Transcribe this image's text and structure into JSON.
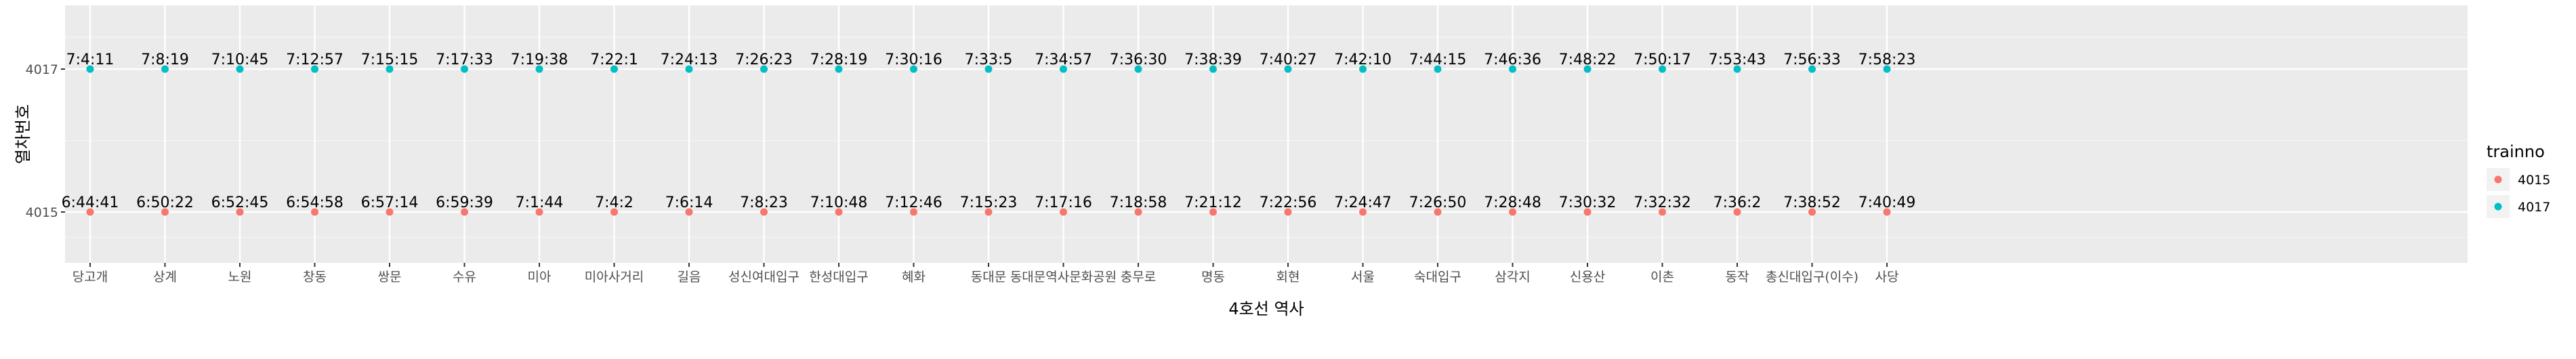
{
  "chart_data": {
    "type": "scatter",
    "title": "",
    "xlabel": "4호선 역사",
    "ylabel": "열차번호",
    "categories": [
      "당고개",
      "상계",
      "노원",
      "창동",
      "쌍문",
      "수유",
      "미아",
      "미아사거리",
      "길음",
      "성신여대입구",
      "한성대입구",
      "혜화",
      "동대문",
      "동대문역사문화공원",
      "충무로",
      "명동",
      "회현",
      "서울",
      "숙대입구",
      "삼각지",
      "신용산",
      "이촌",
      "동작",
      "총신대입구(이수)",
      "사당"
    ],
    "y_ticks": [
      "4015",
      "4017"
    ],
    "grid": true,
    "legend": {
      "title": "trainno",
      "position": "right",
      "entries": [
        "4015",
        "4017"
      ]
    },
    "series": [
      {
        "name": "4015",
        "color": "#F8766D",
        "labels": [
          "6:44:41",
          "6:50:22",
          "6:52:45",
          "6:54:58",
          "6:57:14",
          "6:59:39",
          "7:1:44",
          "7:4:2",
          "7:6:14",
          "7:8:23",
          "7:10:48",
          "7:12:46",
          "7:15:23",
          "7:17:16",
          "7:18:58",
          "7:21:12",
          "7:22:56",
          "7:24:47",
          "7:26:50",
          "7:28:48",
          "7:30:32",
          "7:32:32",
          "7:36:2",
          "7:38:52",
          "7:40:49"
        ]
      },
      {
        "name": "4017",
        "color": "#00BFC4",
        "labels": [
          "7:4:11",
          "7:8:19",
          "7:10:45",
          "7:12:57",
          "7:15:15",
          "7:17:33",
          "7:19:38",
          "7:22:1",
          "7:24:13",
          "7:26:23",
          "7:28:19",
          "7:30:16",
          "7:33:5",
          "7:34:57",
          "7:36:30",
          "7:38:39",
          "7:40:27",
          "7:42:10",
          "7:44:15",
          "7:46:36",
          "7:48:22",
          "7:50:17",
          "7:53:43",
          "7:56:33",
          "7:58:23"
        ]
      }
    ]
  }
}
